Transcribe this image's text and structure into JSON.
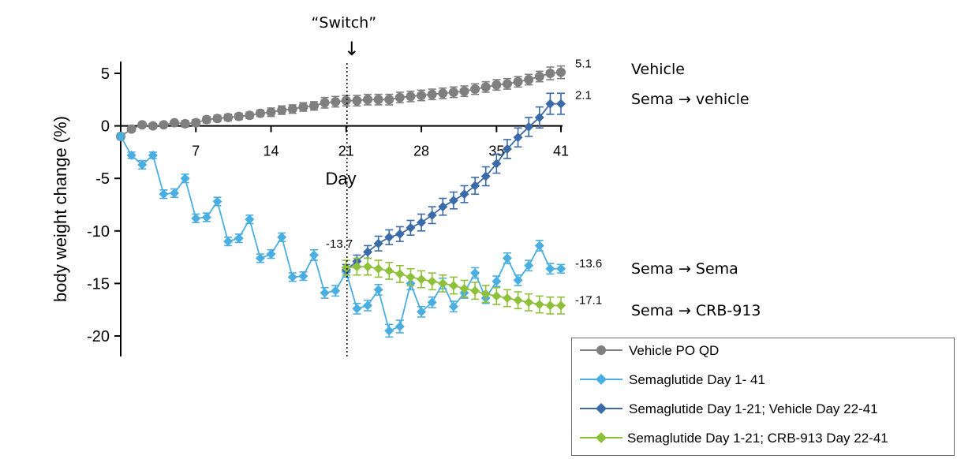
{
  "chart_data": {
    "type": "line",
    "title": "",
    "xlabel": "Day",
    "ylabel": "body weight change (%)",
    "xlim": [
      0,
      41
    ],
    "ylim": [
      -22,
      5.5
    ],
    "x_ticks": [
      7,
      14,
      21,
      28,
      35,
      41
    ],
    "y_ticks": [
      5,
      0,
      -5,
      -10,
      -15,
      -20
    ],
    "switch_day": 21,
    "switch_label": "“Switch”",
    "switch_arrow": "↓",
    "series": [
      {
        "name": "Vehicle PO QD",
        "color": "#7f7f7f",
        "marker": "circle",
        "x": [
          0,
          1,
          2,
          3,
          4,
          5,
          6,
          7,
          8,
          9,
          10,
          11,
          12,
          13,
          14,
          15,
          16,
          17,
          18,
          19,
          20,
          21,
          22,
          23,
          24,
          25,
          26,
          27,
          28,
          29,
          30,
          31,
          32,
          33,
          34,
          35,
          36,
          37,
          38,
          39,
          40,
          41
        ],
        "values": [
          -1.0,
          -0.3,
          0.1,
          0.0,
          0.1,
          0.3,
          0.2,
          0.3,
          0.6,
          0.7,
          0.8,
          0.9,
          1.0,
          1.2,
          1.3,
          1.5,
          1.6,
          1.8,
          1.9,
          2.2,
          2.3,
          2.4,
          2.4,
          2.5,
          2.5,
          2.5,
          2.7,
          2.8,
          2.9,
          3.0,
          3.1,
          3.2,
          3.3,
          3.5,
          3.7,
          3.9,
          4.0,
          4.2,
          4.4,
          4.7,
          5.0,
          5.1
        ],
        "error": [
          0.2,
          0.2,
          0.2,
          0.2,
          0.2,
          0.2,
          0.3,
          0.3,
          0.3,
          0.3,
          0.3,
          0.3,
          0.3,
          0.3,
          0.4,
          0.4,
          0.4,
          0.4,
          0.4,
          0.5,
          0.5,
          0.5,
          0.5,
          0.5,
          0.5,
          0.5,
          0.5,
          0.5,
          0.5,
          0.5,
          0.5,
          0.5,
          0.5,
          0.5,
          0.5,
          0.5,
          0.5,
          0.5,
          0.5,
          0.5,
          0.6,
          0.6
        ]
      },
      {
        "name": "Semaglutide Day 1- 41",
        "color": "#4aaee0",
        "marker": "diamond",
        "x": [
          0,
          1,
          2,
          3,
          4,
          5,
          6,
          7,
          8,
          9,
          10,
          11,
          12,
          13,
          14,
          15,
          16,
          17,
          18,
          19,
          20,
          21,
          22,
          23,
          24,
          25,
          26,
          27,
          28,
          29,
          30,
          31,
          32,
          33,
          34,
          35,
          36,
          37,
          38,
          39,
          40,
          41
        ],
        "values": [
          -1.0,
          -2.8,
          -3.7,
          -2.8,
          -6.5,
          -6.4,
          -5.0,
          -8.8,
          -8.7,
          -7.2,
          -11.0,
          -10.7,
          -8.9,
          -12.6,
          -12.2,
          -10.6,
          -14.4,
          -14.3,
          -12.3,
          -15.9,
          -15.7,
          -13.9,
          -17.4,
          -17.1,
          -15.6,
          -19.5,
          -19.1,
          -15.0,
          -17.7,
          -16.8,
          -15.0,
          -17.2,
          -15.9,
          -14.0,
          -16.4,
          -14.8,
          -12.6,
          -14.7,
          -13.3,
          -11.4,
          -13.6,
          -13.6
        ],
        "error": [
          0.3,
          0.3,
          0.4,
          0.3,
          0.4,
          0.4,
          0.4,
          0.4,
          0.4,
          0.4,
          0.4,
          0.4,
          0.4,
          0.4,
          0.4,
          0.4,
          0.4,
          0.4,
          0.5,
          0.5,
          0.5,
          0.5,
          0.5,
          0.5,
          0.5,
          0.6,
          0.6,
          0.6,
          0.5,
          0.5,
          0.5,
          0.5,
          0.5,
          0.5,
          0.5,
          0.5,
          0.5,
          0.5,
          0.5,
          0.5,
          0.5,
          0.4
        ]
      },
      {
        "name": "Semaglutide Day 1-21; Vehicle Day 22-41",
        "color": "#3a6aa8",
        "marker": "diamond",
        "x": [
          21,
          22,
          23,
          24,
          25,
          26,
          27,
          28,
          29,
          30,
          31,
          32,
          33,
          34,
          35,
          36,
          37,
          38,
          39,
          40,
          41
        ],
        "values": [
          -13.7,
          -12.9,
          -12.0,
          -11.2,
          -10.6,
          -10.3,
          -9.7,
          -9.2,
          -8.5,
          -7.7,
          -7.1,
          -6.5,
          -5.7,
          -4.8,
          -3.6,
          -2.2,
          -1.1,
          -0.1,
          0.8,
          2.1,
          2.1
        ],
        "error": [
          0.5,
          0.6,
          0.6,
          0.7,
          0.7,
          0.7,
          0.7,
          0.8,
          0.8,
          0.8,
          0.8,
          0.8,
          0.8,
          0.9,
          0.9,
          0.9,
          0.9,
          0.9,
          1.0,
          1.0,
          1.0
        ]
      },
      {
        "name": "Semaglutide Day 1-21; CRB-913 Day 22-41",
        "color": "#8fc03a",
        "marker": "diamond",
        "x": [
          21,
          22,
          23,
          24,
          25,
          26,
          27,
          28,
          29,
          30,
          31,
          32,
          33,
          34,
          35,
          36,
          37,
          38,
          39,
          40,
          41
        ],
        "values": [
          -13.5,
          -13.4,
          -13.4,
          -13.6,
          -13.8,
          -14.1,
          -14.4,
          -14.6,
          -14.8,
          -15.0,
          -15.2,
          -15.5,
          -15.7,
          -16.0,
          -16.2,
          -16.4,
          -16.6,
          -16.8,
          -17.0,
          -17.1,
          -17.1
        ],
        "error": [
          0.7,
          0.8,
          0.8,
          0.8,
          0.8,
          0.8,
          0.8,
          0.8,
          0.8,
          0.8,
          0.8,
          0.8,
          0.8,
          0.8,
          0.8,
          0.8,
          0.8,
          0.8,
          0.8,
          0.8,
          0.8
        ]
      }
    ],
    "value_labels": [
      {
        "text": "5.1",
        "value": 5.1,
        "series": 0
      },
      {
        "text": "2.1",
        "value": 2.1,
        "series": 2
      },
      {
        "text": "-13.6",
        "value": -13.6,
        "series": 1
      },
      {
        "text": "-17.1",
        "value": -17.1,
        "series": 3
      },
      {
        "text": "-13.7",
        "value": -13.7,
        "series": 2,
        "at_switch": true
      }
    ],
    "group_labels": [
      {
        "text": "Vehicle",
        "series": 0
      },
      {
        "text": "Sema → vehicle",
        "series": 2
      },
      {
        "text": "Sema → Sema",
        "series": 1
      },
      {
        "text": "Sema → CRB-913",
        "series": 3
      }
    ]
  },
  "legend": {
    "items": [
      {
        "label": "Vehicle PO QD",
        "color": "#7f7f7f",
        "marker": "circle"
      },
      {
        "label": "Semaglutide Day 1- 41",
        "color": "#4aaee0",
        "marker": "diamond"
      },
      {
        "label": "Semaglutide Day 1-21; Vehicle Day 22-41",
        "color": "#3a6aa8",
        "marker": "diamond"
      },
      {
        "label": "Semaglutide Day 1-21; CRB-913 Day 22-41",
        "color": "#8fc03a",
        "marker": "diamond"
      }
    ]
  }
}
